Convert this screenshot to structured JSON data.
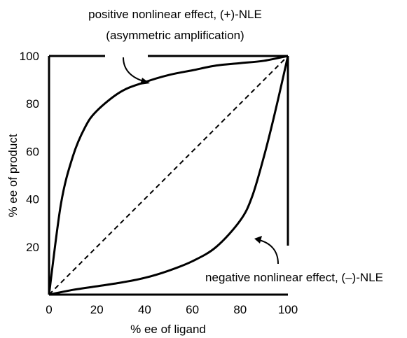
{
  "chart_data": {
    "type": "line",
    "title": "",
    "xlabel": "% ee of ligand",
    "ylabel": "% ee of product",
    "xlim": [
      0,
      100
    ],
    "ylim": [
      0,
      100
    ],
    "x_ticks": [
      "0",
      "20",
      "40",
      "60",
      "80",
      "100"
    ],
    "y_ticks": [
      "20",
      "40",
      "60",
      "80",
      "100"
    ],
    "grid": false,
    "legend": "none",
    "series": [
      {
        "style": "solid",
        "x": [
          0,
          5,
          10,
          15,
          20,
          30,
          40,
          50,
          60,
          70,
          80,
          90,
          100
        ],
        "y": [
          0,
          38,
          58,
          70,
          77,
          85,
          89,
          92,
          94,
          96,
          97,
          98,
          100
        ]
      },
      {
        "style": "dashed",
        "x": [
          0,
          100
        ],
        "y": [
          0,
          100
        ]
      },
      {
        "style": "solid",
        "x": [
          0,
          10,
          20,
          30,
          40,
          50,
          60,
          70,
          80,
          85,
          90,
          95,
          100
        ],
        "y": [
          0,
          2,
          3.5,
          5,
          7,
          10,
          14,
          20,
          31,
          41,
          58,
          78,
          100
        ]
      }
    ],
    "annotations": [
      {
        "lines": [
          "positive nonlinear effect, (+)-NLE",
          "(asymmetric amplification)"
        ],
        "points_to": {
          "x": 37,
          "y": 88
        }
      },
      {
        "lines": [
          "negative nonlinear effect, (–)-NLE"
        ],
        "points_to": {
          "x": 85,
          "y": 22
        }
      }
    ]
  }
}
